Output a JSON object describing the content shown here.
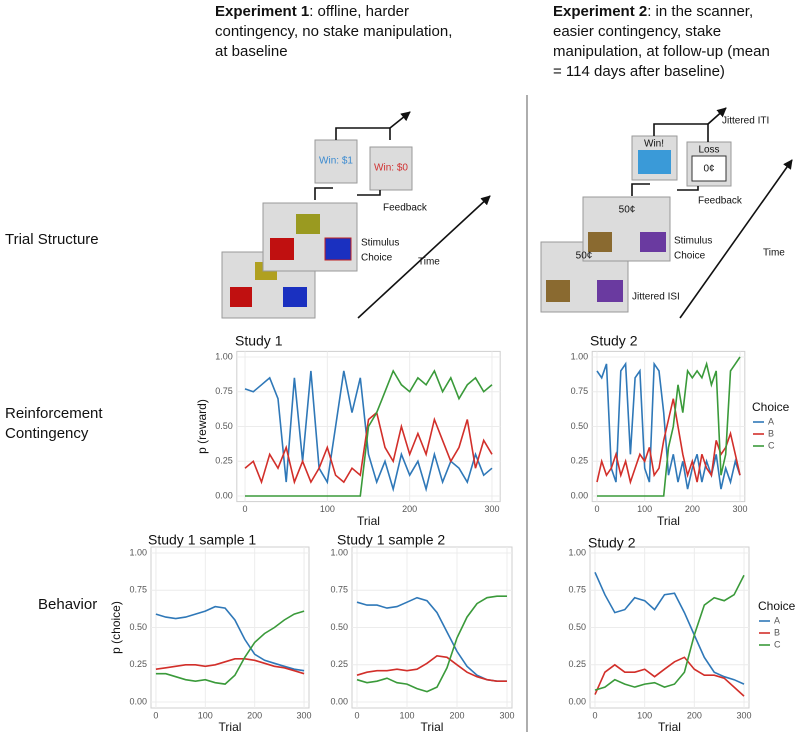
{
  "experiments": [
    {
      "label": "Experiment 1",
      "lines": [
        ": offline, harder",
        "contingency, no stake manipulation,",
        "at baseline"
      ]
    },
    {
      "label": "Experiment 2",
      "lines": [
        ": in the scanner,",
        "easier contingency, stake",
        "manipulation,  at follow-up (mean",
        "= 114 days after baseline)"
      ]
    }
  ],
  "row_labels": {
    "trial_structure": "Trial Structure",
    "reinforcement": [
      "Reinforcement",
      "Contingency"
    ],
    "behavior": "Behavior"
  },
  "trial_structure": {
    "exp1": {
      "win1": "Win: $1",
      "win0": "Win: $0",
      "feedback": "Feedback",
      "stimulus": "Stimulus",
      "choice": "Choice",
      "time": "Time"
    },
    "exp2": {
      "win": "Win!",
      "loss": "Loss",
      "zero": "0¢",
      "stake1": "50¢",
      "stake2": "50¢",
      "iti": "Jittered ITI",
      "feedback": "Feedback",
      "stimulus": "Stimulus",
      "choice": "Choice",
      "isi": "Jittered ISI",
      "time": "Time"
    }
  },
  "chart_data": [
    {
      "type": "line",
      "title": "Study 1",
      "xlabel": "Trial",
      "ylabel": "p (reward)",
      "grid": true,
      "legend": false,
      "xlim": [
        -10,
        310
      ],
      "ylim": [
        -0.04,
        1.04
      ],
      "xticks": [
        0,
        100,
        200,
        300
      ],
      "yticks": [
        {
          "value": 0,
          "label": "0.00"
        },
        {
          "value": 0.25,
          "label": "0.25"
        },
        {
          "value": 0.5,
          "label": "0.50"
        },
        {
          "value": 0.75,
          "label": "0.75"
        },
        {
          "value": 1,
          "label": "1.00"
        }
      ],
      "x": [
        0,
        10,
        20,
        30,
        40,
        50,
        60,
        70,
        80,
        90,
        100,
        110,
        120,
        130,
        140,
        150,
        160,
        170,
        180,
        190,
        200,
        210,
        220,
        230,
        240,
        250,
        260,
        270,
        280,
        290,
        300
      ],
      "series": [
        {
          "color": "#2f78b8",
          "values": [
            0.77,
            0.75,
            0.8,
            0.85,
            0.7,
            0.1,
            0.85,
            0.25,
            0.9,
            0.2,
            0.1,
            0.5,
            0.9,
            0.6,
            0.85,
            0.3,
            0.1,
            0.25,
            0.05,
            0.3,
            0.15,
            0.25,
            0.05,
            0.3,
            0.1,
            0.25,
            0.2,
            0.1,
            0.3,
            0.15,
            0.2
          ]
        },
        {
          "color": "#d22f2a",
          "values": [
            0.2,
            0.25,
            0.1,
            0.3,
            0.2,
            0.35,
            0.1,
            0.25,
            0.1,
            0.2,
            0.35,
            0.15,
            0.1,
            0.2,
            0.15,
            0.55,
            0.6,
            0.35,
            0.25,
            0.5,
            0.3,
            0.45,
            0.3,
            0.55,
            0.4,
            0.25,
            0.35,
            0.55,
            0.2,
            0.4,
            0.3
          ]
        },
        {
          "color": "#3a9a3a",
          "values": [
            0,
            0,
            0,
            0,
            0,
            0,
            0,
            0,
            0,
            0,
            0,
            0,
            0,
            0,
            0,
            0.5,
            0.6,
            0.75,
            0.9,
            0.8,
            0.75,
            0.85,
            0.8,
            0.9,
            0.75,
            0.85,
            0.7,
            0.8,
            0.85,
            0.75,
            0.8
          ]
        }
      ]
    },
    {
      "type": "line",
      "title": "Study 2",
      "xlabel": "Trial",
      "grid": true,
      "legend": true,
      "legend_title": "Choice",
      "xlim": [
        -10,
        310
      ],
      "ylim": [
        -0.04,
        1.04
      ],
      "xticks": [
        0,
        100,
        200,
        300
      ],
      "yticks": [
        {
          "value": 0,
          "label": "0.00"
        },
        {
          "value": 0.25,
          "label": "0.25"
        },
        {
          "value": 0.5,
          "label": "0.50"
        },
        {
          "value": 0.75,
          "label": "0.75"
        },
        {
          "value": 1,
          "label": "1.00"
        }
      ],
      "x": [
        0,
        10,
        20,
        30,
        40,
        50,
        60,
        70,
        80,
        90,
        100,
        110,
        120,
        130,
        140,
        150,
        160,
        170,
        180,
        190,
        200,
        210,
        220,
        230,
        240,
        250,
        260,
        270,
        280,
        290,
        300
      ],
      "series": [
        {
          "name": "A",
          "color": "#2f78b8",
          "values": [
            0.9,
            0.85,
            0.95,
            0.2,
            0.1,
            0.9,
            0.95,
            0.3,
            0.85,
            0.9,
            0.2,
            0.1,
            0.95,
            0.9,
            0.6,
            0.15,
            0.3,
            0.1,
            0.25,
            0.05,
            0.2,
            0.3,
            0.1,
            0.25,
            0.15,
            0.3,
            0.05,
            0.2,
            0.1,
            0.25,
            0.15
          ]
        },
        {
          "name": "B",
          "color": "#d22f2a",
          "values": [
            0.1,
            0.25,
            0.15,
            0.2,
            0.3,
            0.15,
            0.25,
            0.1,
            0.2,
            0.3,
            0.25,
            0.35,
            0.15,
            0.2,
            0.4,
            0.55,
            0.7,
            0.5,
            0.3,
            0.15,
            0.25,
            0.1,
            0.3,
            0.2,
            0.15,
            0.4,
            0.3,
            0.35,
            0.45,
            0.3,
            0.15
          ]
        },
        {
          "name": "C",
          "color": "#3a9a3a",
          "values": [
            0,
            0,
            0,
            0,
            0,
            0,
            0,
            0,
            0,
            0,
            0,
            0,
            0,
            0,
            0,
            0.35,
            0.5,
            0.8,
            0.6,
            0.9,
            0.85,
            0.9,
            0.85,
            0.95,
            0.8,
            0.9,
            0.15,
            0.3,
            0.9,
            0.95,
            1.0
          ]
        }
      ]
    },
    {
      "type": "line",
      "title": "Study 1 sample 1",
      "xlabel": "Trial",
      "ylabel": "p (choice)",
      "grid": true,
      "legend": false,
      "xlim": [
        -10,
        310
      ],
      "ylim": [
        -0.04,
        1.04
      ],
      "xticks": [
        0,
        100,
        200,
        300
      ],
      "yticks": [
        {
          "value": 0,
          "label": "0.00"
        },
        {
          "value": 0.25,
          "label": "0.25"
        },
        {
          "value": 0.5,
          "label": "0.50"
        },
        {
          "value": 0.75,
          "label": "0.75"
        },
        {
          "value": 1,
          "label": "1.00"
        }
      ],
      "x": [
        0,
        20,
        40,
        60,
        80,
        100,
        120,
        140,
        160,
        180,
        200,
        220,
        240,
        260,
        280,
        300
      ],
      "series": [
        {
          "color": "#2f78b8",
          "values": [
            0.59,
            0.57,
            0.56,
            0.57,
            0.59,
            0.61,
            0.64,
            0.63,
            0.55,
            0.42,
            0.32,
            0.28,
            0.26,
            0.24,
            0.22,
            0.21
          ]
        },
        {
          "color": "#d22f2a",
          "values": [
            0.22,
            0.23,
            0.24,
            0.25,
            0.25,
            0.24,
            0.25,
            0.27,
            0.29,
            0.29,
            0.28,
            0.26,
            0.24,
            0.23,
            0.21,
            0.19
          ]
        },
        {
          "color": "#3a9a3a",
          "values": [
            0.19,
            0.19,
            0.17,
            0.15,
            0.14,
            0.15,
            0.13,
            0.12,
            0.18,
            0.3,
            0.4,
            0.46,
            0.5,
            0.55,
            0.59,
            0.61
          ]
        }
      ]
    },
    {
      "type": "line",
      "title": "Study 1 sample 2",
      "xlabel": "Trial",
      "grid": true,
      "legend": false,
      "xlim": [
        -10,
        310
      ],
      "ylim": [
        -0.04,
        1.04
      ],
      "xticks": [
        0,
        100,
        200,
        300
      ],
      "yticks": [
        {
          "value": 0,
          "label": "0.00"
        },
        {
          "value": 0.25,
          "label": "0.25"
        },
        {
          "value": 0.5,
          "label": "0.50"
        },
        {
          "value": 0.75,
          "label": "0.75"
        },
        {
          "value": 1,
          "label": "1.00"
        }
      ],
      "x": [
        0,
        20,
        40,
        60,
        80,
        100,
        120,
        140,
        160,
        180,
        200,
        220,
        240,
        260,
        280,
        300
      ],
      "series": [
        {
          "color": "#2f78b8",
          "values": [
            0.67,
            0.65,
            0.65,
            0.63,
            0.64,
            0.67,
            0.7,
            0.68,
            0.6,
            0.47,
            0.34,
            0.24,
            0.18,
            0.15,
            0.14,
            0.14
          ]
        },
        {
          "color": "#d22f2a",
          "values": [
            0.18,
            0.2,
            0.21,
            0.21,
            0.22,
            0.21,
            0.22,
            0.26,
            0.31,
            0.3,
            0.25,
            0.2,
            0.17,
            0.15,
            0.14,
            0.14
          ]
        },
        {
          "color": "#3a9a3a",
          "values": [
            0.15,
            0.13,
            0.14,
            0.16,
            0.13,
            0.12,
            0.09,
            0.07,
            0.1,
            0.23,
            0.43,
            0.57,
            0.66,
            0.7,
            0.71,
            0.71
          ]
        }
      ]
    },
    {
      "type": "line",
      "title": "Study 2",
      "xlabel": "Trial",
      "grid": true,
      "legend": true,
      "legend_title": "Choice",
      "xlim": [
        -10,
        310
      ],
      "ylim": [
        -0.04,
        1.04
      ],
      "xticks": [
        0,
        100,
        200,
        300
      ],
      "yticks": [
        {
          "value": 0,
          "label": "0.00"
        },
        {
          "value": 0.25,
          "label": "0.25"
        },
        {
          "value": 0.5,
          "label": "0.50"
        },
        {
          "value": 0.75,
          "label": "0.75"
        },
        {
          "value": 1,
          "label": "1.00"
        }
      ],
      "x": [
        0,
        20,
        40,
        60,
        80,
        100,
        120,
        140,
        160,
        180,
        200,
        220,
        240,
        260,
        280,
        300
      ],
      "series": [
        {
          "name": "A",
          "color": "#2f78b8",
          "values": [
            0.87,
            0.72,
            0.6,
            0.62,
            0.7,
            0.68,
            0.62,
            0.72,
            0.73,
            0.6,
            0.45,
            0.3,
            0.2,
            0.17,
            0.15,
            0.12
          ]
        },
        {
          "name": "B",
          "color": "#d22f2a",
          "values": [
            0.05,
            0.2,
            0.25,
            0.2,
            0.2,
            0.22,
            0.17,
            0.22,
            0.27,
            0.3,
            0.22,
            0.18,
            0.18,
            0.16,
            0.1,
            0.04
          ]
        },
        {
          "name": "C",
          "color": "#3a9a3a",
          "values": [
            0.08,
            0.1,
            0.15,
            0.12,
            0.1,
            0.12,
            0.13,
            0.1,
            0.12,
            0.2,
            0.45,
            0.65,
            0.7,
            0.68,
            0.72,
            0.85
          ]
        }
      ]
    }
  ]
}
